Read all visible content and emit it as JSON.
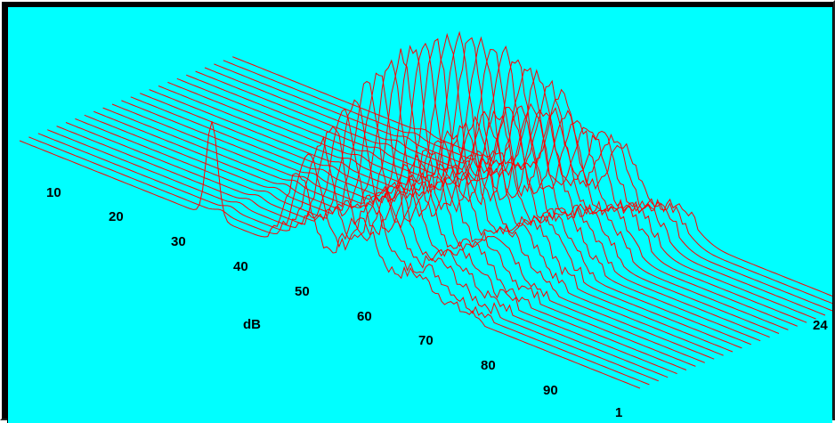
{
  "chart_data": {
    "type": "waterfall-3d",
    "title": "",
    "background_color": "#00ffff",
    "line_color": "#ff0000",
    "grid": false,
    "x_axis_label": "dB",
    "x_ticks": [
      "10",
      "20",
      "30",
      "40",
      "50",
      "60",
      "70",
      "80",
      "90"
    ],
    "x_range": [
      0,
      100
    ],
    "y_ticks": [
      "1",
      "24"
    ],
    "traces": 24,
    "peaks": [
      {
        "x": 31,
        "height": 108
      },
      {
        "x": 45,
        "height": 195
      },
      {
        "x": 55,
        "height": 140
      },
      {
        "x": 64,
        "height": 50
      }
    ]
  }
}
